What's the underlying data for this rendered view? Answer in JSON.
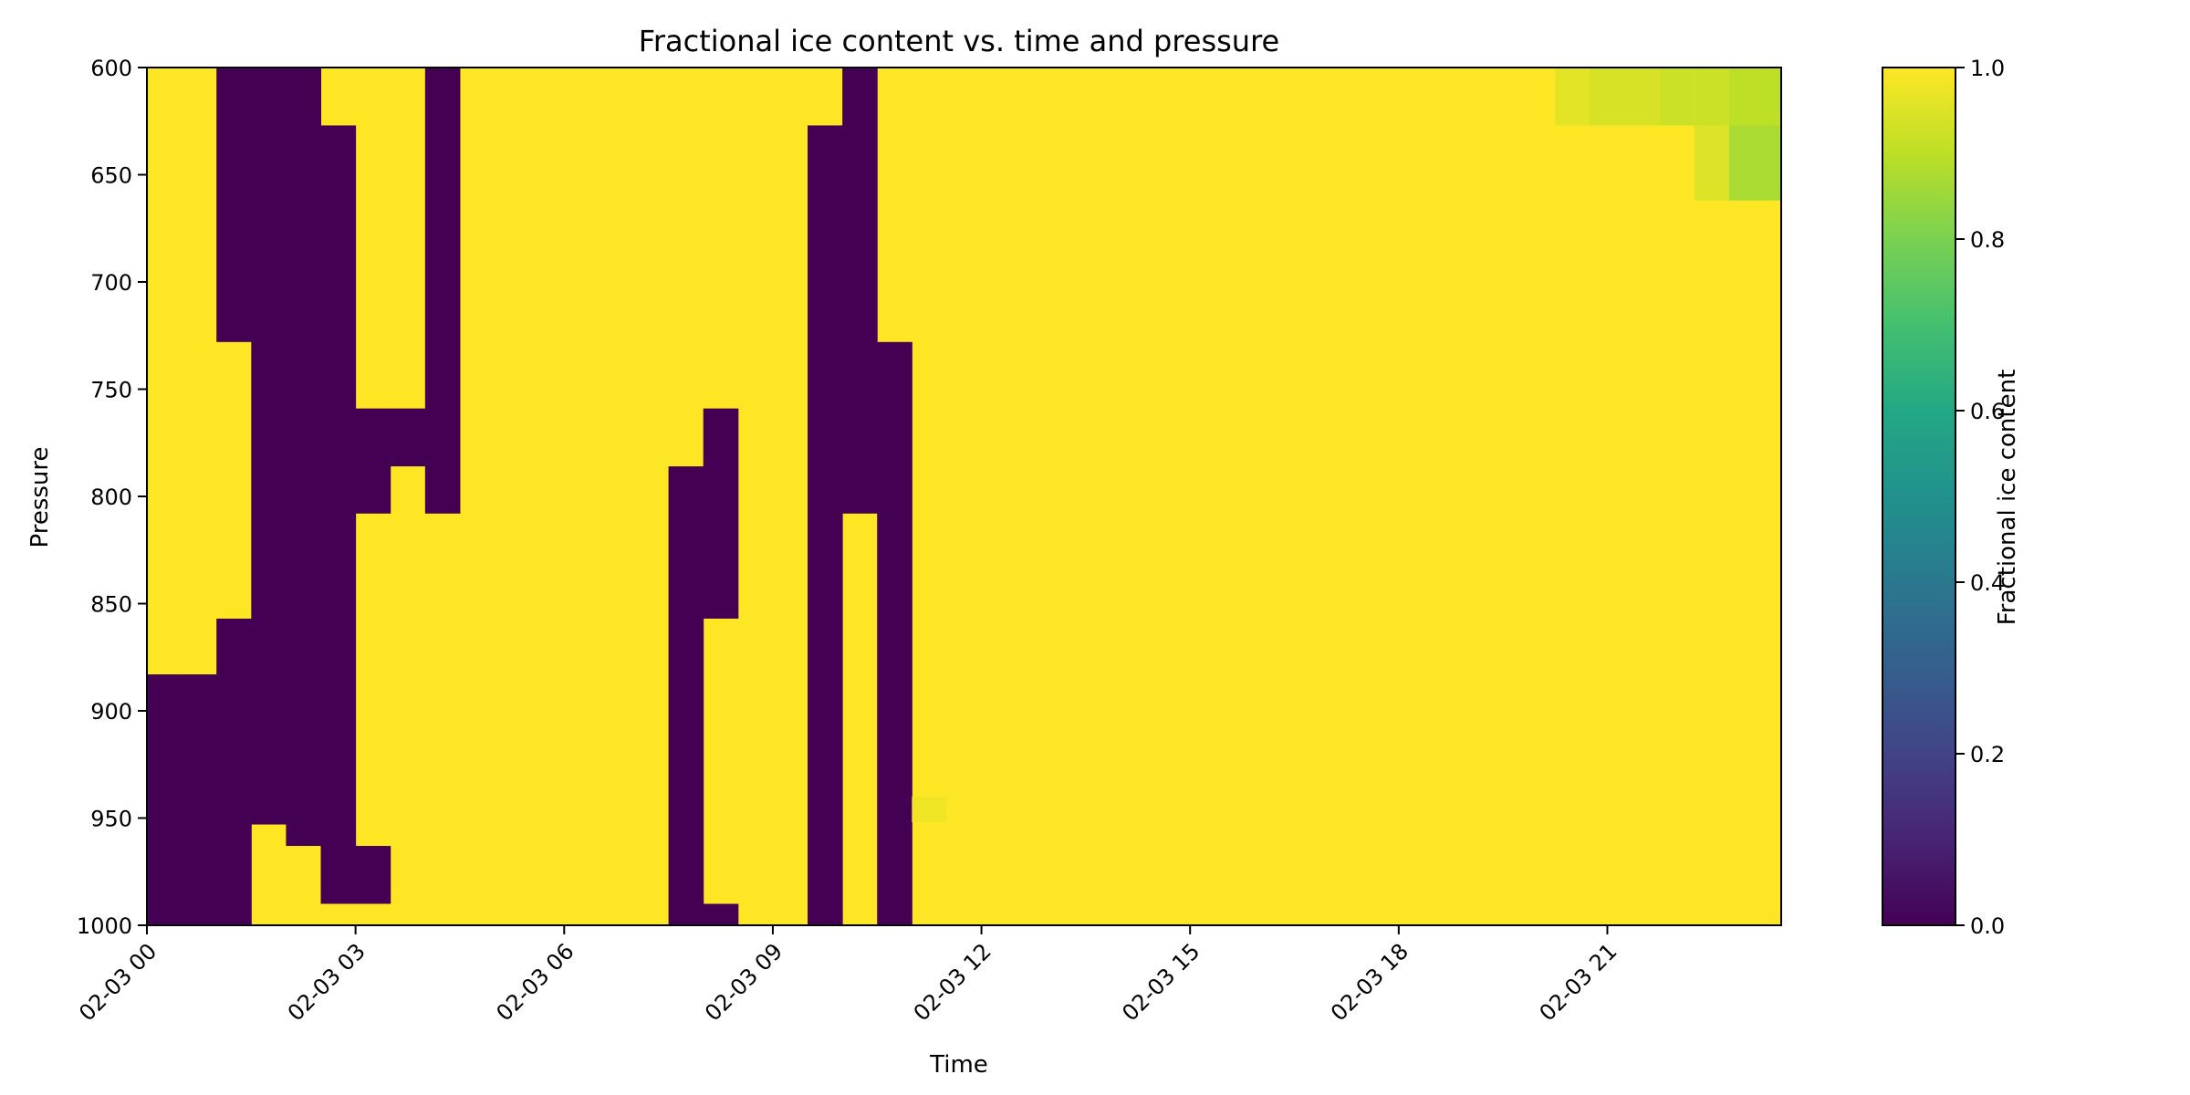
{
  "chart_data": {
    "type": "heatmap",
    "title": "Fractional ice content vs. time and pressure",
    "xlabel": "Time",
    "ylabel": "Pressure",
    "colorbar_label": "Fractional ice content",
    "colormap": "viridis",
    "vmin": 0.0,
    "vmax": 1.0,
    "colorbar_ticks": [
      "0.0",
      "0.2",
      "0.4",
      "0.6",
      "0.8",
      "1.0"
    ],
    "x_start": "02-03 00",
    "x_step_hours": 0.5,
    "x_tick_labels": [
      "02-03 00",
      "02-03 03",
      "02-03 06",
      "02-03 09",
      "02-03 12",
      "02-03 15",
      "02-03 18",
      "02-03 21"
    ],
    "y_tick_labels": [
      "600",
      "650",
      "700",
      "750",
      "800",
      "850",
      "900",
      "950",
      "1000"
    ],
    "ylim": [
      1000,
      600
    ],
    "levels": [
      600,
      625,
      650,
      675,
      700,
      725,
      750,
      775,
      800,
      825,
      850,
      875,
      900,
      925,
      950,
      975,
      1000
    ],
    "notes": "Values are 0.0 (dark) or 1.0 (yellow) except where specified; near 02-03 21-23 upper levels values ~0.93-0.96.",
    "cell_columns": [
      {
        "t": "02-03 00:00",
        "dark": [
          [
            883,
            1000
          ]
        ]
      },
      {
        "t": "02-03 00:30",
        "dark": [
          [
            883,
            1000
          ]
        ]
      },
      {
        "t": "02-03 01:00",
        "dark": [
          [
            600,
            728
          ],
          [
            857,
            1000
          ]
        ]
      },
      {
        "t": "02-03 01:30",
        "dark": [
          [
            600,
            953
          ]
        ]
      },
      {
        "t": "02-03 02:00",
        "dark": [
          [
            600,
            963
          ]
        ]
      },
      {
        "t": "02-03 02:30",
        "dark": [
          [
            627,
            990
          ]
        ]
      },
      {
        "t": "02-03 03:00",
        "dark": [
          [
            759,
            808
          ],
          [
            963,
            990
          ]
        ]
      },
      {
        "t": "02-03 03:30",
        "dark": [
          [
            759,
            786
          ]
        ]
      },
      {
        "t": "02-03 04:00",
        "dark": [
          [
            600,
            808
          ]
        ]
      },
      {
        "t": "02-03 07:30",
        "dark": [
          [
            786,
            1000
          ]
        ]
      },
      {
        "t": "02-03 08:00",
        "dark": [
          [
            759,
            857
          ],
          [
            990,
            1000
          ]
        ]
      },
      {
        "t": "02-03 09:30",
        "dark": [
          [
            627,
            1000
          ]
        ]
      },
      {
        "t": "02-03 10:00",
        "dark": [
          [
            600,
            808
          ]
        ]
      },
      {
        "t": "02-03 10:30",
        "dark": [
          [
            728,
            1000
          ]
        ]
      }
    ],
    "light_patches": [
      {
        "t_from": "02-03 20:15",
        "t_to": "02-03 20:45",
        "p_from": 600,
        "p_to": 627,
        "value": 0.96
      },
      {
        "t_from": "02-03 20:45",
        "t_to": "02-03 21:45",
        "p_from": 600,
        "p_to": 627,
        "value": 0.94
      },
      {
        "t_from": "02-03 21:45",
        "t_to": "02-03 22:15",
        "p_from": 600,
        "p_to": 627,
        "value": 0.92
      },
      {
        "t_from": "02-03 22:15",
        "t_to": "02-03 22:45",
        "p_from": 600,
        "p_to": 627,
        "value": 0.92
      },
      {
        "t_from": "02-03 22:15",
        "t_to": "02-03 22:45",
        "p_from": 627,
        "p_to": 662,
        "value": 0.95
      },
      {
        "t_from": "02-03 22:45",
        "t_to": "02-03 23:30",
        "p_from": 600,
        "p_to": 627,
        "value": 0.9
      },
      {
        "t_from": "02-03 22:45",
        "t_to": "02-03 23:30",
        "p_from": 627,
        "p_to": 662,
        "value": 0.87
      },
      {
        "t_from": "02-03 11:00",
        "t_to": "02-03 11:30",
        "p_from": 940,
        "p_to": 952,
        "value": 0.98
      }
    ]
  }
}
